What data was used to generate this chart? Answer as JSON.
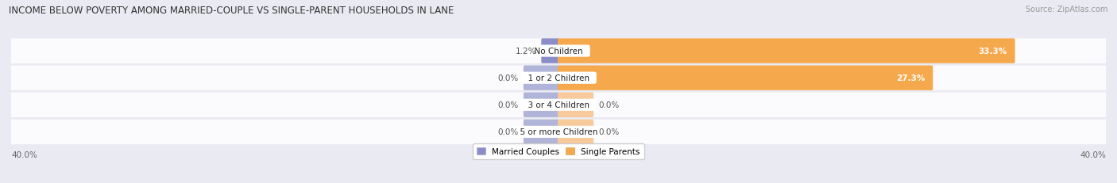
{
  "title": "INCOME BELOW POVERTY AMONG MARRIED-COUPLE VS SINGLE-PARENT HOUSEHOLDS IN LANE",
  "source": "Source: ZipAtlas.com",
  "categories": [
    "No Children",
    "1 or 2 Children",
    "3 or 4 Children",
    "5 or more Children"
  ],
  "married_values": [
    1.2,
    0.0,
    0.0,
    0.0
  ],
  "single_values": [
    33.3,
    27.3,
    0.0,
    0.0
  ],
  "married_color": "#8b8dc8",
  "married_color_light": "#b0b4d8",
  "single_color": "#f5a84c",
  "single_color_light": "#f8c99a",
  "bg_color": "#eaeaf2",
  "row_bg_color": "#f0f0f5",
  "axis_limit": 40.0,
  "stub_size": 2.5,
  "title_fontsize": 8.5,
  "label_fontsize": 7.5,
  "cat_fontsize": 7.5,
  "tick_fontsize": 7.5,
  "source_fontsize": 7.0,
  "legend_fontsize": 7.5
}
